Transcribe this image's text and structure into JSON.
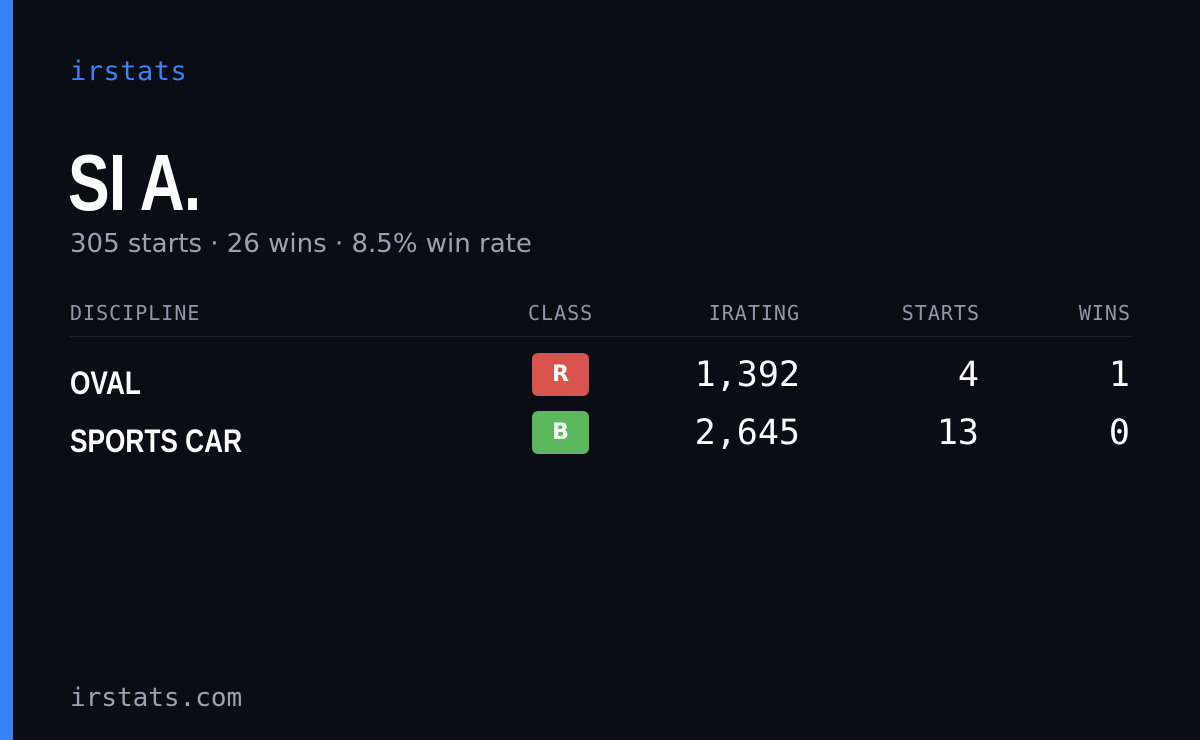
{
  "brand": "irstats",
  "driver": {
    "name": "SI A."
  },
  "summary": {
    "starts": "305 starts",
    "wins": "26 wins",
    "win_rate": "8.5% win rate",
    "separator": "·"
  },
  "table": {
    "headers": {
      "discipline": "DISCIPLINE",
      "class": "CLASS",
      "irating": "IRATING",
      "starts": "STARTS",
      "wins": "WINS"
    },
    "rows": [
      {
        "discipline": "OVAL",
        "class": "R",
        "class_color": "#d9534f",
        "irating": "1,392",
        "starts": "4",
        "wins": "1"
      },
      {
        "discipline": "SPORTS CAR",
        "class": "B",
        "class_color": "#5cb85c",
        "irating": "2,645",
        "starts": "13",
        "wins": "0"
      }
    ]
  },
  "footer": "irstats.com",
  "colors": {
    "accent": "#3b82f6",
    "background": "#0a0d14",
    "muted_text": "#9aa3b2"
  }
}
